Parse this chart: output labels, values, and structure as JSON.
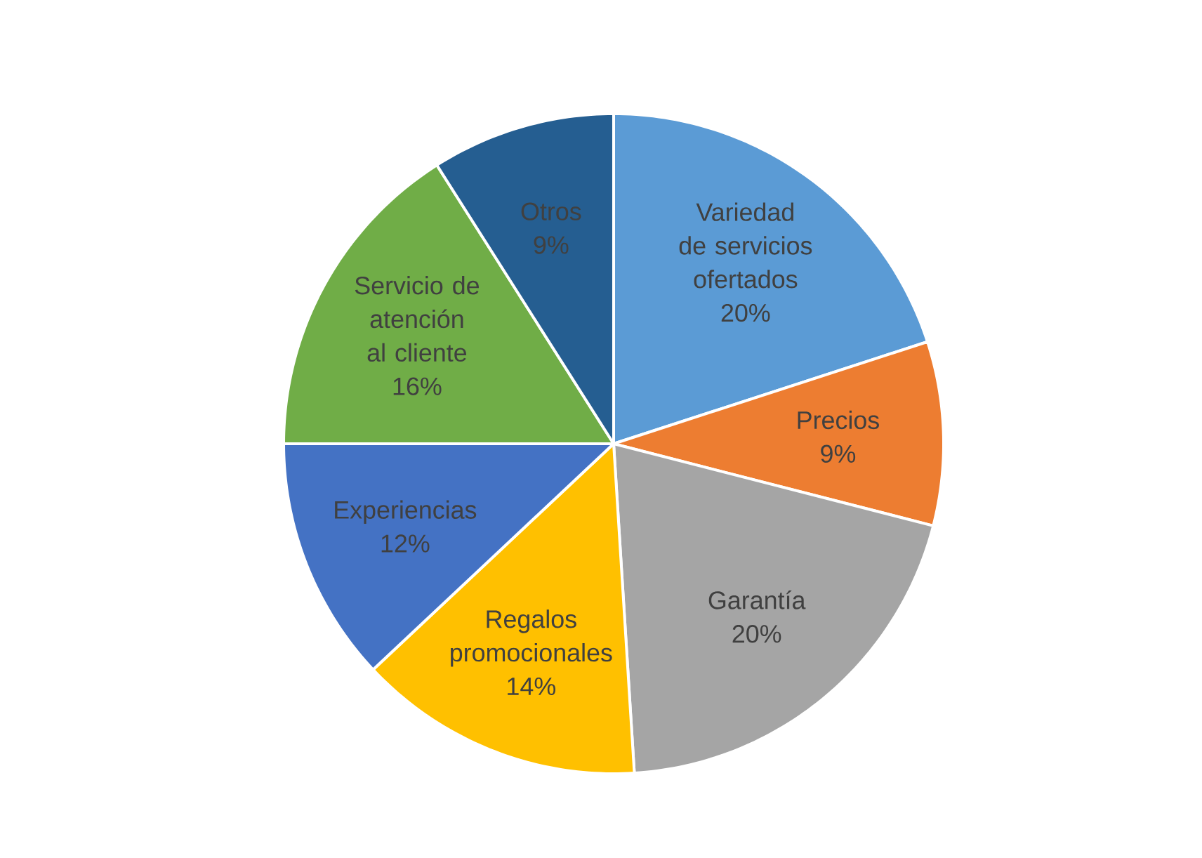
{
  "chart_data": {
    "type": "pie",
    "categories": [
      "Variedad de servicios ofertados",
      "Precios",
      "Garantía",
      "Regalos promocionales",
      "Experiencias",
      "Servicio de atención al cliente",
      "Otros"
    ],
    "values": [
      20,
      9,
      20,
      14,
      12,
      16,
      9
    ],
    "colors": [
      "#5b9bd5",
      "#ed7d31",
      "#a5a5a5",
      "#ffc000",
      "#4472c4",
      "#70ad47",
      "#255e91"
    ],
    "value_labels": [
      "20%",
      "9%",
      "20%",
      "14%",
      "12%",
      "16%",
      "9%"
    ]
  }
}
